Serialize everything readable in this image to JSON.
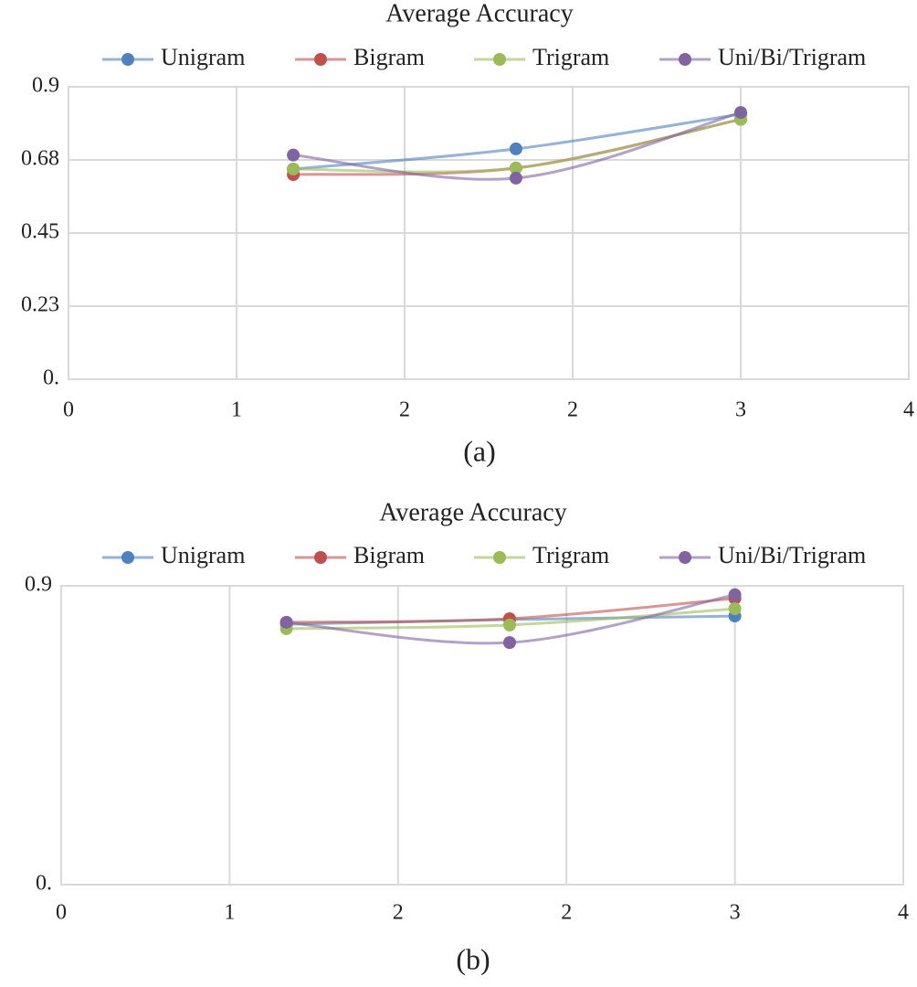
{
  "chart_data": [
    {
      "type": "line",
      "title": "Average Accuracy",
      "caption": "(a)",
      "x": [
        1.07,
        2.13,
        3.2
      ],
      "series": [
        {
          "name": "Unigram",
          "color": "#4f81bd",
          "values": [
            0.647,
            0.709,
            0.816
          ]
        },
        {
          "name": "Bigram",
          "color": "#c0504d",
          "values": [
            0.63,
            0.65,
            0.8
          ]
        },
        {
          "name": "Trigram",
          "color": "#9bbb59",
          "values": [
            0.647,
            0.65,
            0.8
          ]
        },
        {
          "name": "Uni/Bi/Trigram",
          "color": "#8064a2",
          "values": [
            0.69,
            0.619,
            0.821
          ]
        }
      ],
      "xlim": [
        0,
        4
      ],
      "xticks": [
        0,
        {
          "value": 0.8,
          "label": "1"
        },
        {
          "value": 1.6,
          "label": "2"
        },
        {
          "value": 2.4,
          "label": "2"
        },
        {
          "value": 3.2,
          "label": "3"
        },
        4
      ],
      "ylim": [
        0,
        0.9
      ],
      "yticks": [
        {
          "value": 0,
          "label": "0."
        },
        {
          "value": 0.225,
          "label": "0.23"
        },
        0.45,
        {
          "value": 0.675,
          "label": "0.68"
        },
        0.9
      ],
      "grid": true,
      "smooth": true,
      "legend": "top"
    },
    {
      "type": "line",
      "title": "Average Accuracy",
      "caption": "(b)",
      "x": [
        1.07,
        2.13,
        3.2
      ],
      "series": [
        {
          "name": "Unigram",
          "color": "#4f81bd",
          "values": [
            0.784,
            0.798,
            0.809
          ]
        },
        {
          "name": "Bigram",
          "color": "#c0504d",
          "values": [
            0.79,
            0.801,
            0.862
          ]
        },
        {
          "name": "Trigram",
          "color": "#9bbb59",
          "values": [
            0.771,
            0.782,
            0.831
          ]
        },
        {
          "name": "Uni/Bi/Trigram",
          "color": "#8064a2",
          "values": [
            0.79,
            0.729,
            0.873
          ]
        }
      ],
      "xlim": [
        0,
        4
      ],
      "xticks": [
        0,
        {
          "value": 0.8,
          "label": "1"
        },
        {
          "value": 1.6,
          "label": "2"
        },
        {
          "value": 2.4,
          "label": "2"
        },
        {
          "value": 3.2,
          "label": "3"
        },
        4
      ],
      "ylim": [
        0,
        0.9
      ],
      "yticks": [
        {
          "value": 0,
          "label": "0."
        },
        0.9
      ],
      "grid": true,
      "smooth": true,
      "legend": "top"
    }
  ]
}
